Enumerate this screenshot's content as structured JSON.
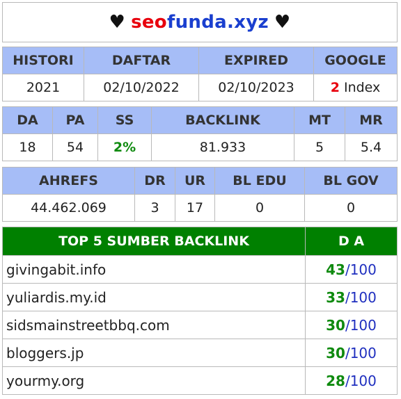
{
  "title": {
    "prefix_heart": "♥",
    "seo": "seo",
    "rest": "funda.xyz",
    "suffix_heart": "♥"
  },
  "table1": {
    "headers": [
      "HISTORI",
      "DAFTAR",
      "EXPIRED",
      "GOOGLE"
    ],
    "values": {
      "histori": "2021",
      "daftar": "02/10/2022",
      "expired": "02/10/2023",
      "google_count": "2",
      "google_label": " Index"
    }
  },
  "table2": {
    "headers": [
      "DA",
      "PA",
      "SS",
      "BACKLINK",
      "MT",
      "MR"
    ],
    "values": [
      "18",
      "54",
      "2%",
      "81.933",
      "5",
      "5.4"
    ]
  },
  "table3": {
    "headers": [
      "AHREFS",
      "DR",
      "UR",
      "BL EDU",
      "BL GOV"
    ],
    "values": [
      "44.462.069",
      "3",
      "17",
      "0",
      "0"
    ]
  },
  "table4": {
    "headers": [
      "TOP 5 SUMBER BACKLINK",
      "D A"
    ],
    "rows": [
      {
        "site": "givingabit.info",
        "da": "43",
        "max": "/100"
      },
      {
        "site": "yuliardis.my.id",
        "da": "33",
        "max": "/100"
      },
      {
        "site": "sidsmainstreetbbq.com",
        "da": "30",
        "max": "/100"
      },
      {
        "site": "bloggers.jp",
        "da": "30",
        "max": "/100"
      },
      {
        "site": "yourmy.org",
        "da": "28",
        "max": "/100"
      }
    ]
  },
  "colors": {
    "header_blue": "#a6bdf7",
    "header_green": "#008000",
    "accent_red": "#e8000d",
    "accent_green": "#0f8a0f",
    "accent_blue": "#1f2fbf"
  }
}
